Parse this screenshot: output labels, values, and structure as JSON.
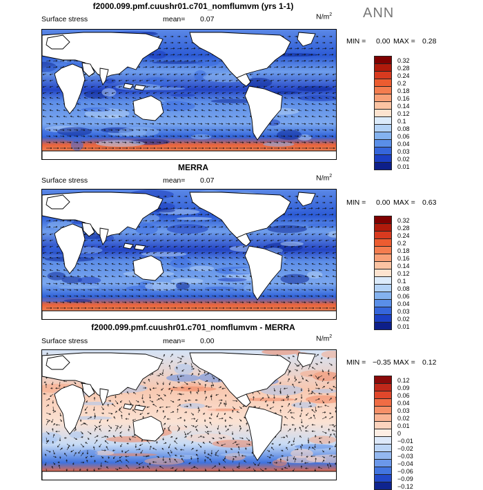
{
  "season": "ANN",
  "panels": [
    {
      "title": "f2000.099.pmf.cuushr01.c701_nomflumvm (yrs 1-1)",
      "field": "Surface stress",
      "mean_label": "mean=",
      "mean_value": "0.07",
      "units_base": "N/m",
      "units_exp": "2",
      "min_label": "MIN =",
      "min_value": "0.00",
      "max_label": "MAX =",
      "max_value": "0.28",
      "colorbar_ticks": [
        "0.32",
        "0.28",
        "0.24",
        "0.2",
        "0.18",
        "0.16",
        "0.14",
        "0.12",
        "0.1",
        "0.08",
        "0.06",
        "0.04",
        "0.03",
        "0.02",
        "0.01"
      ],
      "colorbar_colors": [
        "#7f0000",
        "#b01a0b",
        "#d83a1f",
        "#ec5c30",
        "#f47d4f",
        "#f8a077",
        "#fbc3a2",
        "#fde3cf",
        "#dcebfb",
        "#b3d2f6",
        "#84b2ef",
        "#5a8fe8",
        "#3566db",
        "#1b3fc4",
        "#0d1f8a"
      ]
    },
    {
      "title": "MERRA",
      "field": "Surface stress",
      "mean_label": "mean=",
      "mean_value": "0.07",
      "units_base": "N/m",
      "units_exp": "2",
      "min_label": "MIN =",
      "min_value": "0.00",
      "max_label": "MAX =",
      "max_value": "0.63",
      "colorbar_ticks": [
        "0.32",
        "0.28",
        "0.24",
        "0.2",
        "0.18",
        "0.16",
        "0.14",
        "0.12",
        "0.1",
        "0.08",
        "0.06",
        "0.04",
        "0.03",
        "0.02",
        "0.01"
      ],
      "colorbar_colors": [
        "#7f0000",
        "#b01a0b",
        "#d83a1f",
        "#ec5c30",
        "#f47d4f",
        "#f8a077",
        "#fbc3a2",
        "#fde3cf",
        "#dcebfb",
        "#b3d2f6",
        "#84b2ef",
        "#5a8fe8",
        "#3566db",
        "#1b3fc4",
        "#0d1f8a"
      ]
    },
    {
      "title": "f2000.099.pmf.cuushr01.c701_nomflumvm - MERRA",
      "field": "Surface stress",
      "mean_label": "mean=",
      "mean_value": "0.00",
      "units_base": "N/m",
      "units_exp": "2",
      "min_label": "MIN =",
      "min_value": "−0.35",
      "max_label": "MAX =",
      "max_value": "0.12",
      "colorbar_ticks": [
        "0.12",
        "0.09",
        "0.06",
        "0.04",
        "0.03",
        "0.02",
        "0.01",
        "0",
        "−0.01",
        "−0.02",
        "−0.03",
        "−0.04",
        "−0.06",
        "−0.09",
        "−0.12"
      ],
      "colorbar_colors": [
        "#8a0a0a",
        "#c0281a",
        "#e0472b",
        "#f06c44",
        "#f69068",
        "#f9b494",
        "#fcd3bd",
        "#fdeee4",
        "#dde9fa",
        "#bcd5f6",
        "#93b8f0",
        "#6b98ea",
        "#4275e0",
        "#2148c9",
        "#0f248f"
      ]
    }
  ]
}
